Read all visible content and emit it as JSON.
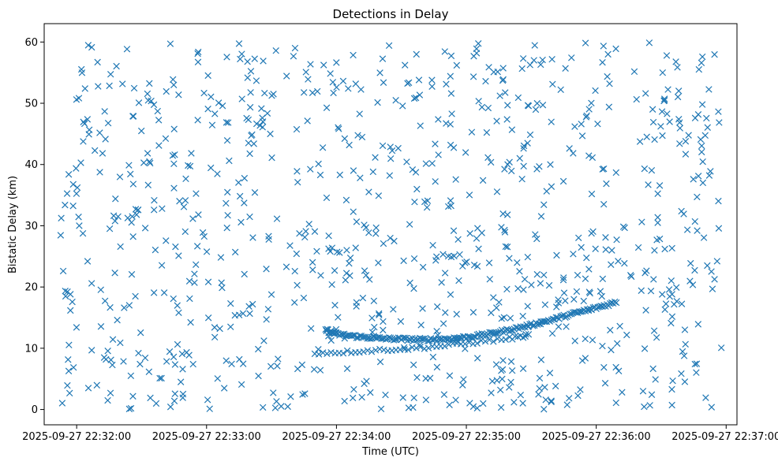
{
  "chart_data": {
    "type": "scatter",
    "title": "Detections in Delay",
    "xlabel": "Time (UTC)",
    "ylabel": "Bistatic Delay (km)",
    "xlim": [
      "2025-09-27 22:31:45",
      "2025-09-27 22:37:05"
    ],
    "ylim": [
      -2.5,
      63
    ],
    "x_ticks": [
      "2025-09-27 22:32:00",
      "2025-09-27 22:33:00",
      "2025-09-27 22:34:00",
      "2025-09-27 22:35:00",
      "2025-09-27 22:36:00",
      "2025-09-27 22:37:00"
    ],
    "y_ticks": [
      0,
      10,
      20,
      30,
      40,
      50,
      60
    ],
    "grid": false,
    "marker": "x",
    "color": "#1f77b4",
    "track_points": [
      {
        "t": "22:33:55",
        "y": 13.0
      },
      {
        "t": "22:34:00",
        "y": 12.3
      },
      {
        "t": "22:34:10",
        "y": 11.9
      },
      {
        "t": "22:34:20",
        "y": 11.6
      },
      {
        "t": "22:34:30",
        "y": 11.5
      },
      {
        "t": "22:34:40",
        "y": 11.4
      },
      {
        "t": "22:34:50",
        "y": 11.5
      },
      {
        "t": "22:35:00",
        "y": 11.8
      },
      {
        "t": "22:35:10",
        "y": 12.3
      },
      {
        "t": "22:35:20",
        "y": 13.0
      },
      {
        "t": "22:35:30",
        "y": 13.8
      },
      {
        "t": "22:35:40",
        "y": 14.7
      },
      {
        "t": "22:35:50",
        "y": 15.7
      },
      {
        "t": "22:36:00",
        "y": 16.6
      },
      {
        "t": "22:36:10",
        "y": 17.6
      },
      {
        "t": "22:33:50",
        "y": 9.2
      },
      {
        "t": "22:34:05",
        "y": 9.4
      },
      {
        "t": "22:34:20",
        "y": 9.7
      },
      {
        "t": "22:34:35",
        "y": 10.0
      },
      {
        "t": "22:34:50",
        "y": 10.4
      },
      {
        "t": "22:35:05",
        "y": 11.0
      },
      {
        "t": "22:35:20",
        "y": 11.6
      },
      {
        "t": "22:35:30",
        "y": 12.2
      }
    ]
  }
}
